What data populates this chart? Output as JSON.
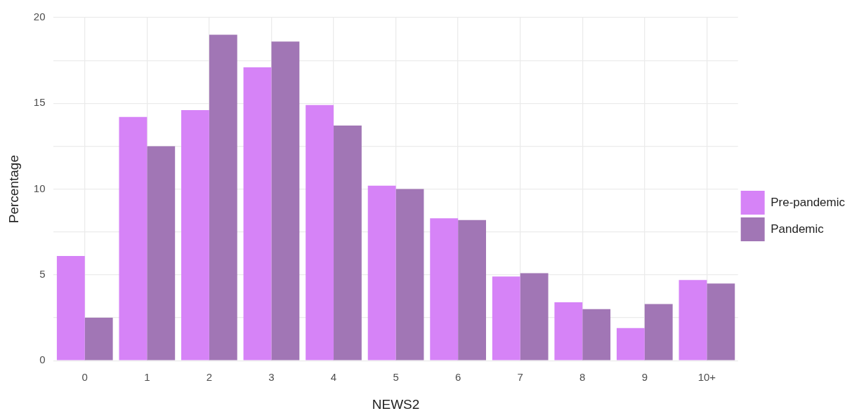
{
  "chart_data": {
    "type": "bar",
    "xlabel": "NEWS2",
    "ylabel": "Percentage",
    "categories": [
      "0",
      "1",
      "2",
      "3",
      "4",
      "5",
      "6",
      "7",
      "8",
      "9",
      "10+"
    ],
    "series": [
      {
        "name": "Pre-pandemic",
        "color": "#d683f7",
        "values": [
          6.1,
          14.2,
          14.6,
          17.1,
          14.9,
          10.2,
          8.3,
          4.9,
          3.4,
          1.9,
          4.7
        ]
      },
      {
        "name": "Pandemic",
        "color": "#a176b5",
        "values": [
          2.5,
          12.5,
          19.0,
          18.6,
          13.7,
          10.0,
          8.2,
          5.1,
          3.0,
          3.3,
          4.5
        ]
      }
    ],
    "ylim": [
      0,
      20
    ],
    "yticks": [
      0,
      {
        "value": 2.5,
        "label": null
      },
      5,
      {
        "value": 7.5,
        "label": null
      },
      10,
      {
        "value": 12.5,
        "label": null
      },
      15,
      {
        "value": 17.5,
        "label": null
      },
      20
    ],
    "grid": true,
    "legend": "right"
  }
}
